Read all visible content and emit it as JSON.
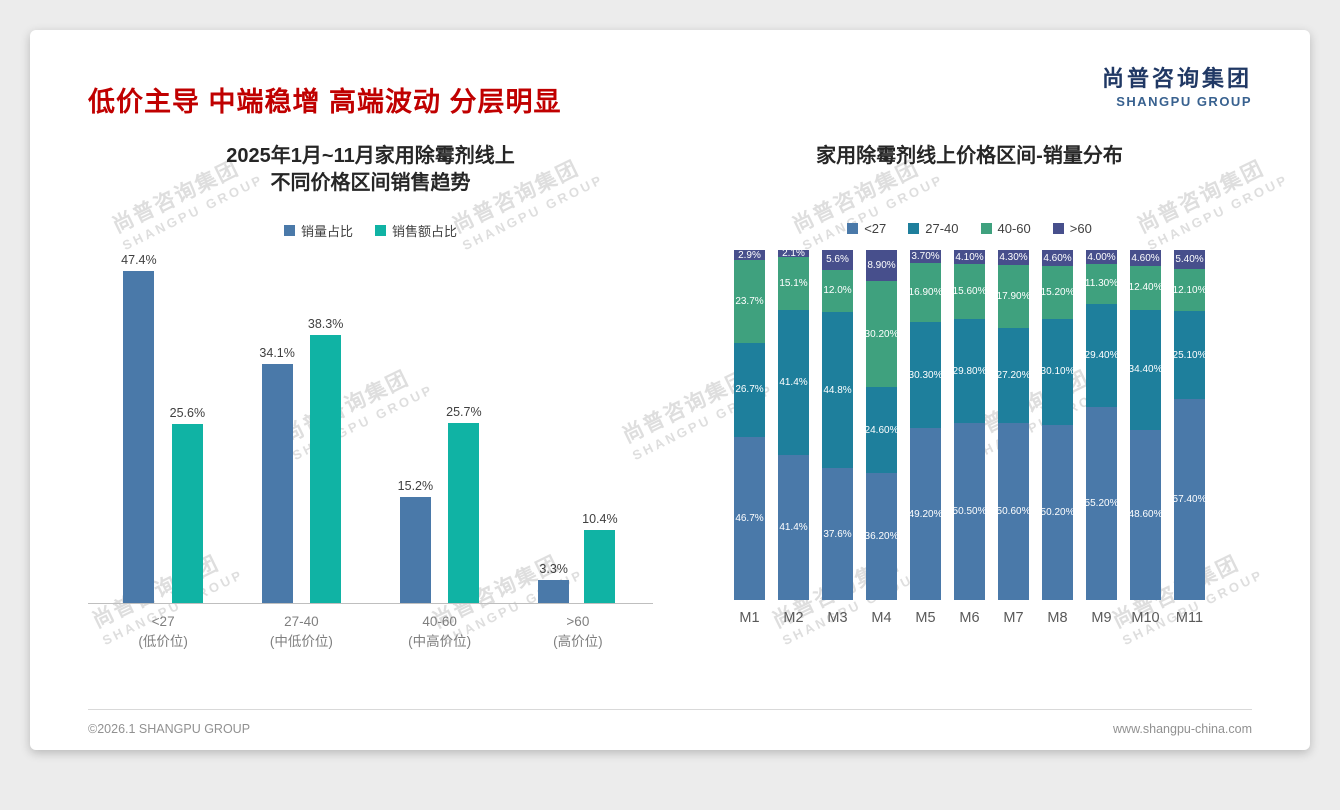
{
  "page": {
    "heading": "低价主导 中端稳增 高端波动 分层明显",
    "logo": {
      "cn": "尚普咨询集团",
      "en": "SHANGPU GROUP"
    },
    "watermark": {
      "line1": "尚普咨询集团",
      "line2": "SHANGPU GROUP"
    },
    "footer": {
      "left": "©2026.1 SHANGPU GROUP",
      "right": "www.shangpu-china.com"
    }
  },
  "colors": {
    "heading_red": "#C00000",
    "vol_blue": "#4A79A9",
    "rev_teal": "#10B3A4",
    "seg_lt27": "#4A79A9",
    "seg_27_40": "#1E7F9C",
    "seg_40_60": "#3FA17E",
    "seg_gt60": "#474F8C"
  },
  "chart_data": [
    {
      "type": "bar",
      "title_lines": [
        "2025年1月~11月家用除霉剂线上",
        "不同价格区间销售趋势"
      ],
      "categories": [
        "<27",
        "27-40",
        "40-60",
        ">60"
      ],
      "category_sublabels": [
        "(低价位)",
        "(中低价位)",
        "(中高价位)",
        "(高价位)"
      ],
      "ylim": [
        0,
        50
      ],
      "grid": false,
      "legend_position": "top",
      "value_suffix": "%",
      "series": [
        {
          "name": "销量占比",
          "color_key": "vol_blue",
          "values": [
            47.4,
            34.1,
            15.2,
            3.3
          ],
          "labels": [
            "47.4%",
            "34.1%",
            "15.2%",
            "3.3%"
          ]
        },
        {
          "name": "销售额占比",
          "color_key": "rev_teal",
          "values": [
            25.6,
            38.3,
            25.7,
            10.4
          ],
          "labels": [
            "25.6%",
            "38.3%",
            "25.7%",
            "10.4%"
          ]
        }
      ]
    },
    {
      "type": "bar",
      "subtype": "stacked-100",
      "title": "家用除霉剂线上价格区间-销量分布",
      "categories": [
        "M1",
        "M2",
        "M3",
        "M4",
        "M5",
        "M6",
        "M7",
        "M8",
        "M9",
        "M10",
        "M11"
      ],
      "ylim": [
        0,
        100
      ],
      "grid": false,
      "legend_position": "top",
      "value_suffix": "%",
      "series": [
        {
          "name": "<27",
          "color_key": "seg_lt27",
          "values": [
            46.7,
            41.4,
            37.6,
            36.2,
            49.2,
            50.5,
            50.6,
            50.2,
            55.2,
            48.6,
            57.4
          ],
          "labels": [
            "46.7%",
            "41.4%",
            "37.6%",
            "36.20%",
            "49.20%",
            "50.50%",
            "50.60%",
            "50.20%",
            "55.20%",
            "48.60%",
            "57.40%"
          ]
        },
        {
          "name": "27-40",
          "color_key": "seg_27_40",
          "values": [
            26.7,
            41.4,
            44.8,
            24.6,
            30.3,
            29.8,
            27.2,
            30.1,
            29.4,
            34.4,
            25.1
          ],
          "labels": [
            "26.7%",
            "41.4%",
            "44.8%",
            "24.60%",
            "30.30%",
            "29.80%",
            "27.20%",
            "30.10%",
            "29.40%",
            "34.40%",
            "25.10%"
          ]
        },
        {
          "name": "40-60",
          "color_key": "seg_40_60",
          "values": [
            23.7,
            15.1,
            12.0,
            30.2,
            16.9,
            15.6,
            17.9,
            15.2,
            11.3,
            12.4,
            12.1
          ],
          "labels": [
            "23.7%",
            "15.1%",
            "12.0%",
            "30.20%",
            "16.90%",
            "15.60%",
            "17.90%",
            "15.20%",
            "11.30%",
            "12.40%",
            "12.10%"
          ]
        },
        {
          "name": ">60",
          "color_key": "seg_gt60",
          "values": [
            2.9,
            2.1,
            5.6,
            8.9,
            3.7,
            4.1,
            4.3,
            4.6,
            4.0,
            4.6,
            5.4
          ],
          "labels": [
            "2.9%",
            "2.1%",
            "5.6%",
            "8.90%",
            "3.70%",
            "4.10%",
            "4.30%",
            "4.60%",
            "4.00%",
            "4.60%",
            "5.40%"
          ]
        }
      ]
    }
  ]
}
